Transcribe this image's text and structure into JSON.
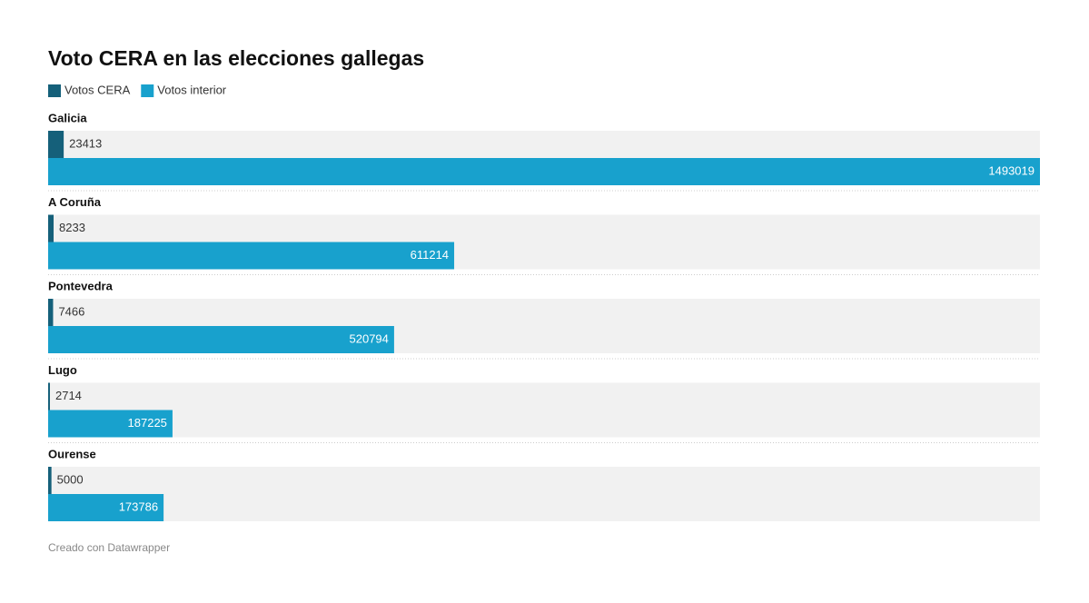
{
  "chart_data": {
    "type": "bar",
    "orientation": "horizontal",
    "title": "Voto CERA en las elecciones gallegas",
    "categories": [
      "Galicia",
      "A Coruña",
      "Pontevedra",
      "Lugo",
      "Ourense"
    ],
    "series": [
      {
        "name": "Votos CERA",
        "color": "#15607a",
        "values": [
          23413,
          8233,
          7466,
          2714,
          5000
        ]
      },
      {
        "name": "Votos interior",
        "color": "#18a1cd",
        "values": [
          1493019,
          611214,
          520794,
          187225,
          173786
        ]
      }
    ],
    "xlim": [
      0,
      1493019
    ],
    "credit": "Creado con Datawrapper"
  }
}
